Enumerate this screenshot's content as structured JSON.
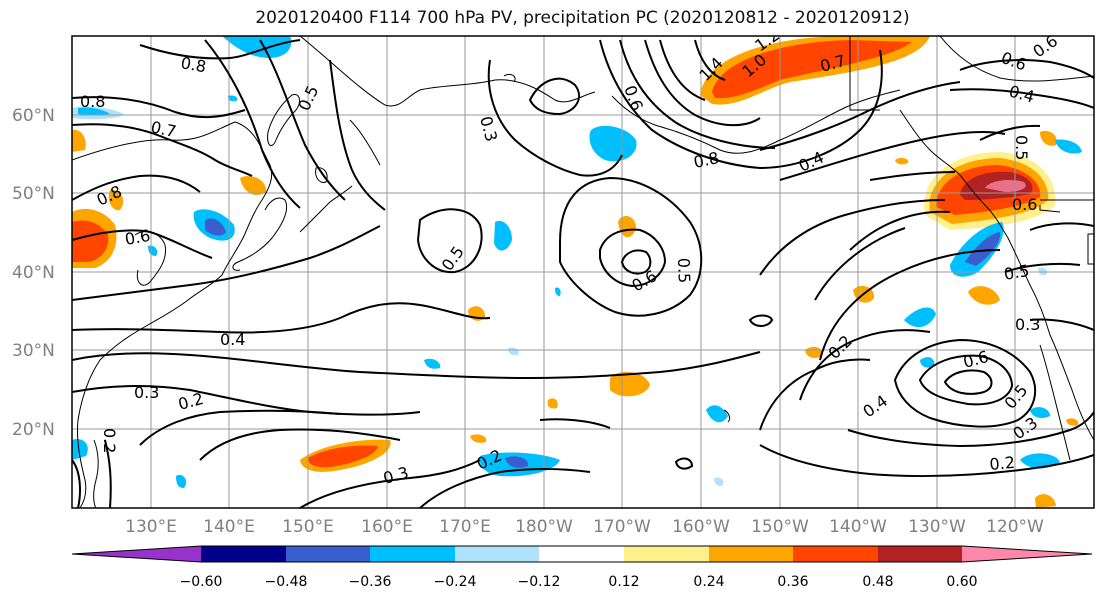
{
  "title": "2020120400 F114 700 hPa PV, precipitation PC (2020120812 - 2020120912)",
  "lat_labels": [
    "60°N",
    "50°N",
    "40°N",
    "30°N",
    "20°N"
  ],
  "lon_labels": [
    "130°E",
    "140°E",
    "150°E",
    "160°E",
    "170°E",
    "180°W",
    "170°W",
    "160°W",
    "150°W",
    "140°W",
    "130°W",
    "120°W"
  ],
  "contour_labels": [
    "0.8",
    "0.8",
    "0.7",
    "0.5",
    "0.3",
    "0.6",
    "0.8",
    "1.4",
    "1.0",
    "1.2",
    "0.7",
    "0.6",
    "0.6",
    "0.4",
    "0.4",
    "0.5",
    "0.6",
    "0.8",
    "0.6",
    "0.5",
    "0.6",
    "0.5",
    "0.4",
    "0.3",
    "0.2",
    "0.2",
    "0.3",
    "0.2",
    "0.2",
    "0.6",
    "0.4",
    "0.5",
    "0.3",
    "0.2",
    "0.5",
    "0.3",
    "0.2"
  ],
  "colorbar": {
    "ticks": [
      "−0.60",
      "−0.48",
      "−0.36",
      "−0.24",
      "−0.12",
      "0.12",
      "0.24",
      "0.36",
      "0.48",
      "0.60"
    ],
    "colors": [
      "#9932cc",
      "#00008b",
      "#3a5fcd",
      "#00bfff",
      "#b0e2ff",
      "#ffffff",
      "#fff08c",
      "#ffa500",
      "#ff4500",
      "#b22222",
      "#ff88aa"
    ]
  },
  "fill_colors": {
    "light_yellow": "#fff08c",
    "orange": "#ffa500",
    "red_orange": "#ff4500",
    "dark_red": "#b22222",
    "pink": "#e8708a",
    "light_blue": "#b0e2ff",
    "sky_blue": "#00bfff",
    "blue": "#3a5fcd"
  }
}
